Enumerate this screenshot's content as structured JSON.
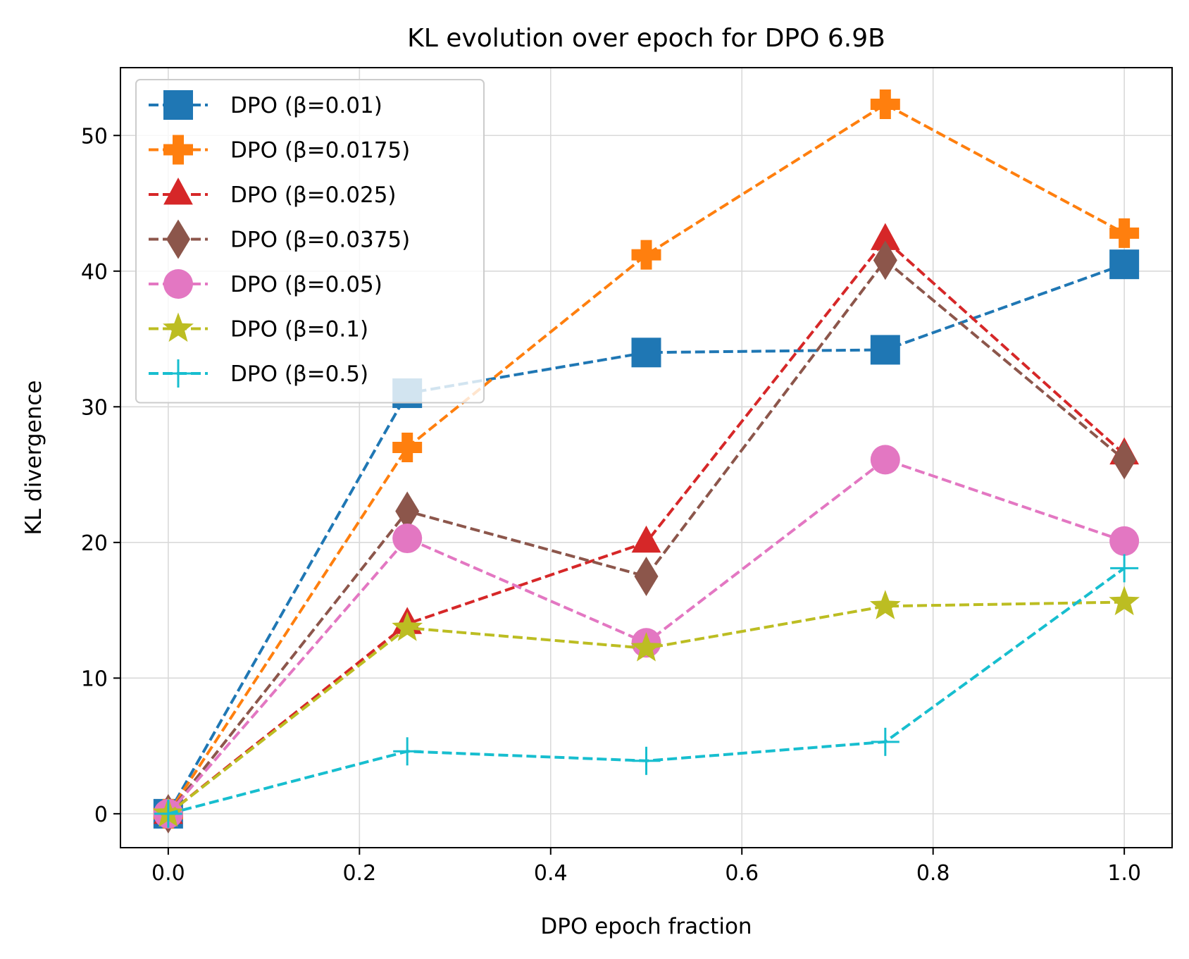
{
  "chart_data": {
    "type": "line",
    "title": "KL evolution over epoch for DPO 6.9B",
    "xlabel": "DPO epoch fraction",
    "ylabel": "KL divergence",
    "xlim": [
      -0.05,
      1.05
    ],
    "ylim": [
      -2.5,
      55
    ],
    "xticks": [
      0.0,
      0.2,
      0.4,
      0.6,
      0.8,
      1.0
    ],
    "xtick_labels": [
      "0.0",
      "0.2",
      "0.4",
      "0.6",
      "0.8",
      "1.0"
    ],
    "yticks": [
      0,
      10,
      20,
      30,
      40,
      50
    ],
    "ytick_labels": [
      "0",
      "10",
      "20",
      "30",
      "40",
      "50"
    ],
    "grid": true,
    "legend_position": "top-left",
    "x": [
      0.0,
      0.25,
      0.5,
      0.75,
      1.0
    ],
    "series": [
      {
        "name": "DPO (β=0.01)",
        "color": "#1f77b4",
        "marker": "square",
        "values": [
          0,
          31.0,
          34.0,
          34.2,
          40.5
        ]
      },
      {
        "name": "DPO (β=0.0175)",
        "color": "#ff7f0e",
        "marker": "plus-filled",
        "values": [
          0,
          27.0,
          41.2,
          52.3,
          42.8
        ]
      },
      {
        "name": "DPO (β=0.025)",
        "color": "#d62728",
        "marker": "triangle",
        "values": [
          0,
          14.0,
          20.0,
          42.3,
          26.5
        ]
      },
      {
        "name": "DPO (β=0.0375)",
        "color": "#8c564b",
        "marker": "diamond",
        "values": [
          0,
          22.3,
          17.5,
          40.8,
          26.1
        ]
      },
      {
        "name": "DPO (β=0.05)",
        "color": "#e377c2",
        "marker": "circle",
        "values": [
          0,
          20.3,
          12.6,
          26.1,
          20.1
        ]
      },
      {
        "name": "DPO (β=0.1)",
        "color": "#bcbd22",
        "marker": "star",
        "values": [
          0,
          13.7,
          12.2,
          15.3,
          15.6
        ]
      },
      {
        "name": "DPO (β=0.5)",
        "color": "#17becf",
        "marker": "plus-thin",
        "values": [
          0,
          4.6,
          3.9,
          5.3,
          18.1
        ]
      }
    ]
  }
}
